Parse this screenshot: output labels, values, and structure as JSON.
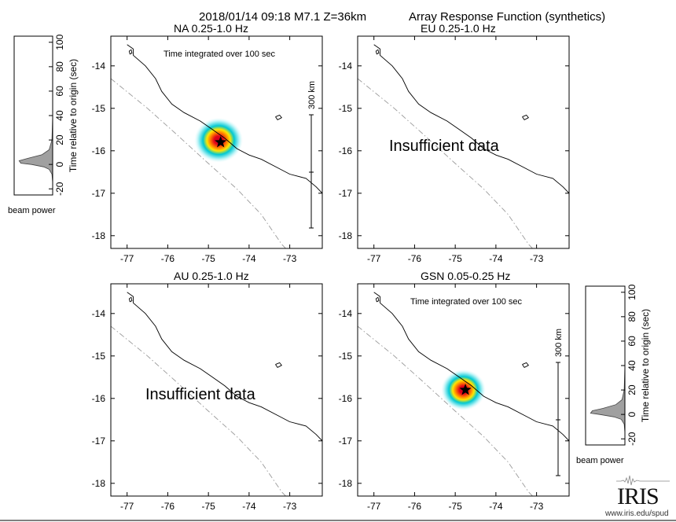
{
  "figure": {
    "event": "2018/01/14 09:18  M7.1  Z=36km",
    "title": "Array Response Function (synthetics)",
    "integration_note": "Time integrated over 100 sec",
    "insufficient_text": "Insufficient data",
    "scale_label": "300 km",
    "power_label": "beam power",
    "time_axis_label": "Time relative to origin (sec)"
  },
  "branding": {
    "url": "www.iris.edu/spud",
    "logo_text": "IRIS"
  },
  "colors": {
    "beam_peak": "#e0001b",
    "beam_mid": "#ffe600",
    "beam_low": "#00c8d2",
    "trench": "#9a9a9a",
    "power_fill": "#a0a0a0"
  },
  "chart_data": [
    {
      "type": "heatmap",
      "panel": "top-left",
      "label": "NA  0.25-1.0 Hz",
      "status": "ok",
      "xlim": [
        -77.4,
        -72.2
      ],
      "ylim": [
        -18.3,
        -13.3
      ],
      "xticks": [
        -77,
        -76,
        -75,
        -74,
        -73
      ],
      "yticks": [
        -14,
        -15,
        -16,
        -17,
        -18
      ],
      "beam_peak": {
        "lon": -74.75,
        "lat": -15.75,
        "extent_deg": 0.6
      },
      "epicenter": {
        "lon": -74.7,
        "lat": -15.8
      },
      "note": "Time integrated over 100 sec",
      "scale_bar_km": 300
    },
    {
      "type": "heatmap",
      "panel": "top-right",
      "label": "EU  0.25-1.0 Hz",
      "status": "insufficient",
      "xlim": [
        -77.4,
        -72.2
      ],
      "ylim": [
        -18.3,
        -13.3
      ],
      "xticks": [
        -77,
        -76,
        -75,
        -74,
        -73
      ],
      "yticks": [
        -14,
        -15,
        -16,
        -17,
        -18
      ]
    },
    {
      "type": "heatmap",
      "panel": "bottom-left",
      "label": "AU  0.25-1.0 Hz",
      "status": "insufficient",
      "xlim": [
        -77.4,
        -72.2
      ],
      "ylim": [
        -18.3,
        -13.3
      ],
      "xticks": [
        -77,
        -76,
        -75,
        -74,
        -73
      ],
      "yticks": [
        -14,
        -15,
        -16,
        -17,
        -18
      ]
    },
    {
      "type": "heatmap",
      "panel": "bottom-right",
      "label": "GSN  0.05-0.25 Hz",
      "status": "ok",
      "xlim": [
        -77.4,
        -72.2
      ],
      "ylim": [
        -18.3,
        -13.3
      ],
      "xticks": [
        -77,
        -76,
        -75,
        -74,
        -73
      ],
      "yticks": [
        -14,
        -15,
        -16,
        -17,
        -18
      ],
      "beam_peak": {
        "lon": -74.8,
        "lat": -15.8,
        "extent_deg": 0.55
      },
      "epicenter": {
        "lon": -74.75,
        "lat": -15.8
      },
      "note": "Time integrated over 100 sec",
      "scale_bar_km": 300
    },
    {
      "type": "area",
      "panel": "beam-power-left",
      "ylabel": "Time relative to origin (sec)",
      "xlabel": "beam power",
      "ylim": [
        -25,
        105
      ],
      "yticks": [
        -20,
        0,
        20,
        40,
        60,
        80,
        100
      ],
      "x": [
        -25,
        -15,
        -8,
        -4,
        -2,
        0,
        1,
        3,
        5,
        8,
        12,
        20,
        40,
        105
      ],
      "values": [
        0,
        0,
        0.02,
        0.1,
        0.25,
        0.6,
        0.9,
        0.95,
        0.7,
        0.3,
        0.1,
        0.02,
        0,
        0
      ]
    },
    {
      "type": "area",
      "panel": "beam-power-right",
      "ylabel": "Time relative to origin (sec)",
      "xlabel": "beam power",
      "ylim": [
        -25,
        105
      ],
      "yticks": [
        -20,
        0,
        20,
        40,
        60,
        80,
        100
      ],
      "x": [
        -25,
        -15,
        -8,
        -4,
        -2,
        0,
        1,
        3,
        5,
        8,
        12,
        20,
        40,
        105
      ],
      "values": [
        0,
        0,
        0.02,
        0.1,
        0.3,
        0.7,
        0.95,
        0.9,
        0.6,
        0.25,
        0.08,
        0.02,
        0,
        0
      ]
    }
  ],
  "map_geometry": {
    "coastline": [
      [
        -77.0,
        -13.5
      ],
      [
        -76.85,
        -13.6
      ],
      [
        -76.85,
        -13.75
      ],
      [
        -76.55,
        -14.0
      ],
      [
        -76.3,
        -14.3
      ],
      [
        -76.15,
        -14.6
      ],
      [
        -75.9,
        -14.9
      ],
      [
        -75.6,
        -15.1
      ],
      [
        -75.2,
        -15.3
      ],
      [
        -74.9,
        -15.5
      ],
      [
        -74.6,
        -15.7
      ],
      [
        -74.3,
        -15.95
      ],
      [
        -74.0,
        -16.1
      ],
      [
        -73.7,
        -16.2
      ],
      [
        -73.3,
        -16.4
      ],
      [
        -73.0,
        -16.55
      ],
      [
        -72.6,
        -16.65
      ],
      [
        -72.35,
        -16.85
      ],
      [
        -72.2,
        -17.0
      ]
    ],
    "island": [
      [
        -76.95,
        -13.65
      ],
      [
        -76.9,
        -13.62
      ],
      [
        -76.88,
        -13.7
      ],
      [
        -76.93,
        -13.72
      ],
      [
        -76.95,
        -13.65
      ]
    ],
    "lake": [
      [
        -73.35,
        -15.2
      ],
      [
        -73.25,
        -15.16
      ],
      [
        -73.2,
        -15.22
      ],
      [
        -73.3,
        -15.27
      ],
      [
        -73.35,
        -15.2
      ]
    ],
    "trench": [
      [
        -77.4,
        -14.3
      ],
      [
        -76.5,
        -15.0
      ],
      [
        -75.8,
        -15.6
      ],
      [
        -75.0,
        -16.3
      ],
      [
        -74.3,
        -16.9
      ],
      [
        -73.7,
        -17.5
      ],
      [
        -73.2,
        -18.2
      ],
      [
        -73.05,
        -18.35
      ]
    ]
  }
}
